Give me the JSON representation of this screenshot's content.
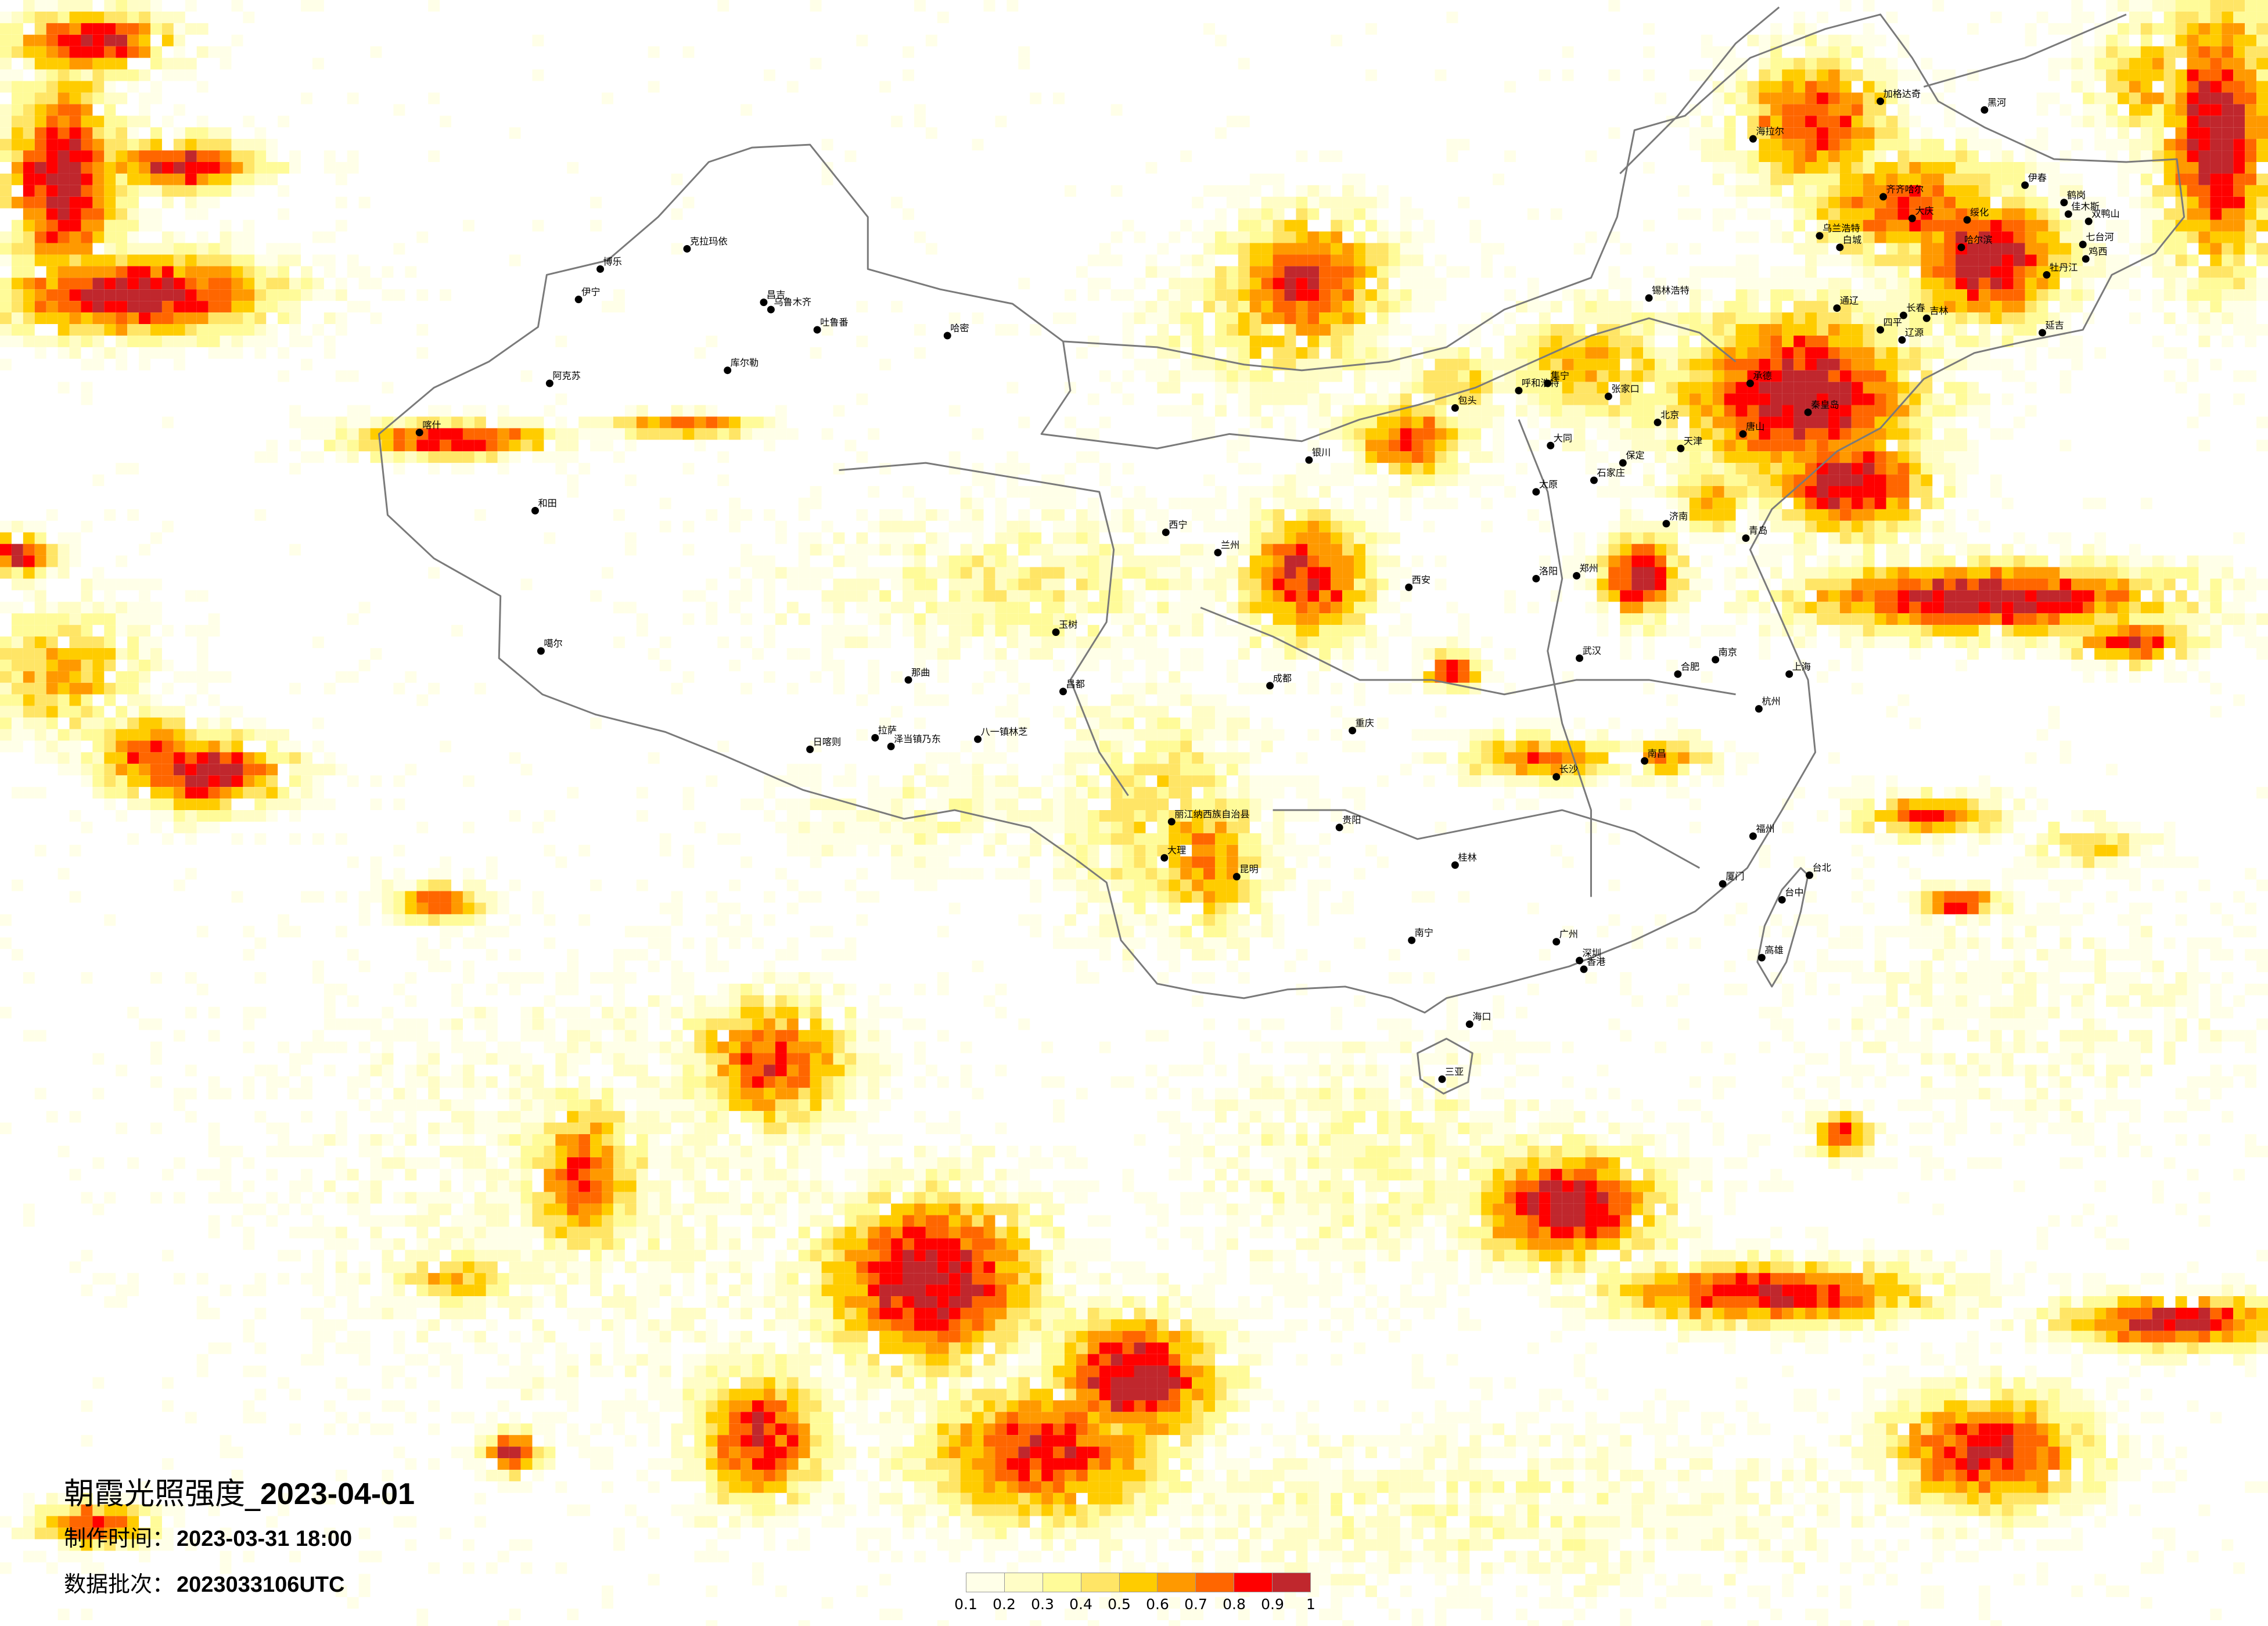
{
  "title": {
    "prefix": "朝霞光照强度_",
    "date": "2023-04-01"
  },
  "made_time": {
    "label": "制作时间：",
    "value": "2023-03-31 18:00"
  },
  "data_batch": {
    "label": "数据批次：",
    "value": "2023033106UTC"
  },
  "legend": {
    "labels": [
      "0.1",
      "0.2",
      "0.3",
      "0.4",
      "0.5",
      "0.6",
      "0.7",
      "0.8",
      "0.9",
      "1"
    ],
    "colors": [
      "#FFFFE8",
      "#FFFDC6",
      "#FFFB99",
      "#FFE566",
      "#FFCC00",
      "#FF9900",
      "#FF6600",
      "#FF0000",
      "#C0272D"
    ]
  },
  "map": {
    "border_color": "#7A7A7A",
    "city_marker_color": "#000000",
    "cities": [
      "克拉玛依",
      "博乐",
      "伊宁",
      "昌吉",
      "乌鲁木齐",
      "吐鲁番",
      "哈密",
      "库尔勒",
      "阿克苏",
      "和田",
      "喀什",
      "噶尔",
      "那曲",
      "日喀则",
      "拉萨",
      "泽当镇乃东",
      "八一镇林芝",
      "昌都",
      "玉树",
      "加格达奇",
      "黑河",
      "海拉尔",
      "齐齐哈尔",
      "大庆",
      "绥化",
      "伊春",
      "鹤岗",
      "佳木斯",
      "双鸭山",
      "哈尔滨",
      "七台河",
      "鸡西",
      "牡丹江",
      "乌兰浩特",
      "白城",
      "通辽",
      "长春",
      "吉林",
      "四平",
      "辽源",
      "延吉",
      "锡林浩特",
      "呼和浩特",
      "包头",
      "集宁",
      "张家口",
      "北京",
      "天津",
      "唐山",
      "秦皇岛",
      "承德",
      "石家庄",
      "保定",
      "太原",
      "大同",
      "济南",
      "青岛",
      "郑州",
      "洛阳",
      "西安",
      "银川",
      "兰州",
      "西宁",
      "成都",
      "重庆",
      "贵阳",
      "昆明",
      "大理",
      "丽江纳西族自治县",
      "南宁",
      "桂林",
      "长沙",
      "南昌",
      "武汉",
      "合肥",
      "南京",
      "上海",
      "杭州",
      "福州",
      "厦门",
      "广州",
      "深圳",
      "香港",
      "海口",
      "台北",
      "台中",
      "高雄",
      "三亚"
    ]
  }
}
